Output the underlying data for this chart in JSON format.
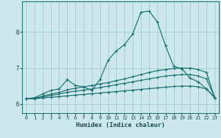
{
  "xlabel": "Humidex (Indice chaleur)",
  "ylabel": "",
  "bg_color": "#cce8ec",
  "grid_color": "#aacccc",
  "line_color": "#1a7070",
  "xlim": [
    -0.5,
    23.5
  ],
  "ylim": [
    5.75,
    8.85
  ],
  "yticks": [
    6,
    7,
    8
  ],
  "xticks": [
    0,
    1,
    2,
    3,
    4,
    5,
    6,
    7,
    8,
    9,
    10,
    11,
    12,
    13,
    14,
    15,
    16,
    17,
    18,
    19,
    20,
    21,
    22,
    23
  ],
  "line1_x": [
    0,
    1,
    2,
    3,
    4,
    5,
    6,
    7,
    8,
    9,
    10,
    11,
    12,
    13,
    14,
    15,
    16,
    17,
    18,
    19,
    20,
    21,
    22,
    23
  ],
  "line1_y": [
    6.15,
    6.18,
    6.28,
    6.38,
    6.42,
    6.68,
    6.52,
    6.48,
    6.38,
    6.68,
    7.22,
    7.48,
    7.65,
    7.95,
    8.55,
    8.58,
    8.28,
    7.62,
    7.05,
    6.98,
    6.72,
    6.62,
    6.42,
    6.18
  ],
  "line2_x": [
    0,
    1,
    2,
    3,
    4,
    5,
    6,
    7,
    8,
    9,
    10,
    11,
    12,
    13,
    14,
    15,
    16,
    17,
    18,
    19,
    20,
    21,
    22,
    23
  ],
  "line2_y": [
    6.15,
    6.16,
    6.22,
    6.28,
    6.32,
    6.4,
    6.44,
    6.48,
    6.52,
    6.56,
    6.6,
    6.65,
    6.7,
    6.76,
    6.82,
    6.88,
    6.93,
    6.96,
    6.99,
    7.0,
    7.0,
    6.96,
    6.88,
    6.18
  ],
  "line3_x": [
    0,
    1,
    2,
    3,
    4,
    5,
    6,
    7,
    8,
    9,
    10,
    11,
    12,
    13,
    14,
    15,
    16,
    17,
    18,
    19,
    20,
    21,
    22,
    23
  ],
  "line3_y": [
    6.15,
    6.16,
    6.2,
    6.24,
    6.28,
    6.33,
    6.36,
    6.39,
    6.42,
    6.46,
    6.5,
    6.54,
    6.58,
    6.62,
    6.66,
    6.7,
    6.74,
    6.78,
    6.8,
    6.82,
    6.82,
    6.78,
    6.7,
    6.18
  ],
  "line4_x": [
    0,
    1,
    2,
    3,
    4,
    5,
    6,
    7,
    8,
    9,
    10,
    11,
    12,
    13,
    14,
    15,
    16,
    17,
    18,
    19,
    20,
    21,
    22,
    23
  ],
  "line4_y": [
    6.15,
    6.15,
    6.17,
    6.19,
    6.21,
    6.23,
    6.25,
    6.27,
    6.29,
    6.31,
    6.33,
    6.35,
    6.37,
    6.39,
    6.41,
    6.43,
    6.45,
    6.47,
    6.49,
    6.5,
    6.5,
    6.48,
    6.42,
    6.18
  ]
}
